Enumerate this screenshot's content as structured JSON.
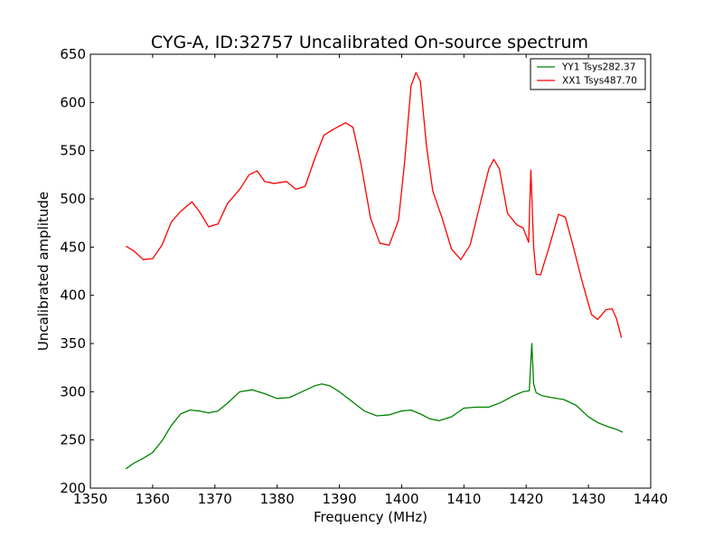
{
  "chart_data": {
    "type": "line",
    "title": "CYG-A, ID:32757 Uncalibrated On-source spectrum",
    "xlabel": "Frequency (MHz)",
    "ylabel": "Uncalibrated amplitude",
    "xlim": [
      1350,
      1440
    ],
    "ylim": [
      200,
      650
    ],
    "xticks": [
      1350,
      1360,
      1370,
      1380,
      1390,
      1400,
      1410,
      1420,
      1430,
      1440
    ],
    "yticks": [
      200,
      250,
      300,
      350,
      400,
      450,
      500,
      550,
      600,
      650
    ],
    "grid": false,
    "legend_position": "top-right",
    "series": [
      {
        "name": "YY1 Tsys282.37",
        "color": "#008000",
        "x": [
          1355.7,
          1357,
          1358.5,
          1360,
          1361.5,
          1363,
          1364.5,
          1366,
          1367.5,
          1369,
          1370.5,
          1372,
          1374,
          1376,
          1378,
          1380,
          1382,
          1384,
          1386,
          1387.2,
          1388.5,
          1390,
          1392,
          1394,
          1396,
          1398,
          1400,
          1401.5,
          1403,
          1404.5,
          1406,
          1408,
          1410,
          1412,
          1414,
          1416,
          1418,
          1419.5,
          1420.5,
          1420.9,
          1421.2,
          1421.6,
          1422.5,
          1424,
          1426,
          1428,
          1430,
          1431.5,
          1433,
          1434.5,
          1435.5
        ],
        "values": [
          220,
          226,
          231,
          237,
          249,
          265,
          277,
          281,
          280,
          278,
          280,
          288,
          300,
          302,
          298,
          293,
          294,
          300,
          306,
          308,
          306,
          300,
          290,
          280,
          275,
          276,
          280,
          281,
          277,
          272,
          270,
          274,
          283,
          284,
          284,
          289,
          296,
          300,
          301,
          350,
          308,
          299,
          296,
          294,
          292,
          286,
          274,
          268,
          264,
          261,
          258
        ]
      },
      {
        "name": "XX1 Tsys487.70",
        "color": "#ff0000",
        "x": [
          1355.7,
          1357,
          1358.5,
          1360,
          1361.5,
          1363,
          1364.5,
          1366.3,
          1367.5,
          1369,
          1370.5,
          1372,
          1374,
          1375.5,
          1376.8,
          1378,
          1379.5,
          1381.5,
          1383,
          1384.5,
          1386,
          1387.5,
          1389,
          1391,
          1392.2,
          1393.5,
          1395,
          1396.5,
          1398,
          1399.5,
          1400.5,
          1401.5,
          1402.3,
          1403,
          1404,
          1405,
          1406.5,
          1408,
          1409.5,
          1411,
          1412.5,
          1414,
          1414.8,
          1415.7,
          1417,
          1418.5,
          1419.5,
          1420.4,
          1420.75,
          1421.2,
          1421.6,
          1422.3,
          1423.5,
          1425.2,
          1426.3,
          1427.5,
          1429,
          1430.5,
          1431.5,
          1432.8,
          1433.8,
          1434.5,
          1435.3
        ],
        "values": [
          451,
          446,
          437,
          438,
          452,
          476,
          487,
          497,
          487,
          471,
          474,
          495,
          510,
          525,
          529,
          518,
          516,
          518,
          510,
          513,
          541,
          566,
          572,
          579,
          574,
          535,
          480,
          454,
          452,
          478,
          540,
          617,
          631,
          622,
          554,
          508,
          480,
          448,
          437,
          452,
          492,
          531,
          541,
          531,
          485,
          473,
          470,
          455,
          530,
          450,
          422,
          421,
          446,
          484,
          481,
          452,
          414,
          380,
          375,
          385,
          386,
          376,
          356
        ]
      }
    ]
  }
}
